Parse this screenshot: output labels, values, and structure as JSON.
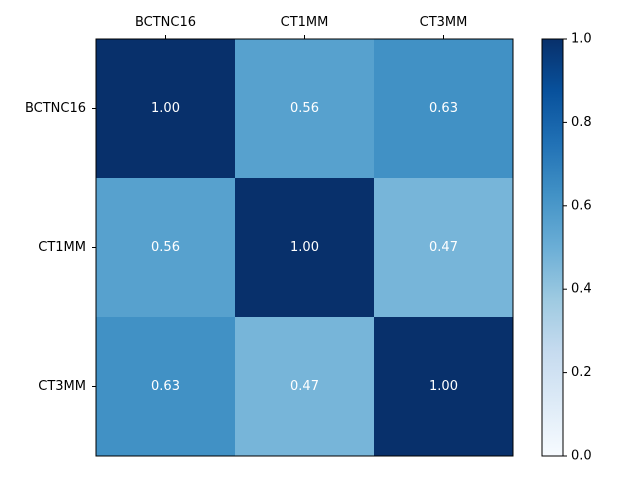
{
  "chart_data": {
    "type": "heatmap",
    "x_categories": [
      "BCTNC16",
      "CT1MM",
      "CT3MM"
    ],
    "y_categories": [
      "BCTNC16",
      "CT1MM",
      "CT3MM"
    ],
    "values": [
      [
        1.0,
        0.56,
        0.63
      ],
      [
        0.56,
        1.0,
        0.47
      ],
      [
        0.63,
        0.47,
        1.0
      ]
    ],
    "cell_labels": [
      [
        "1.00",
        "0.56",
        "0.63"
      ],
      [
        "0.56",
        "1.00",
        "0.47"
      ],
      [
        "0.63",
        "0.47",
        "1.00"
      ]
    ],
    "x_axis_position": "top",
    "colormap": "Blues",
    "colorbar": {
      "range": [
        0.0,
        1.0
      ],
      "ticks": [
        0.0,
        0.2,
        0.4,
        0.6,
        0.8,
        1.0
      ],
      "tick_labels": [
        "0.0",
        "0.2",
        "0.4",
        "0.6",
        "0.8",
        "1.0"
      ],
      "placement": "right"
    },
    "cell_label_color": "#ffffff"
  }
}
